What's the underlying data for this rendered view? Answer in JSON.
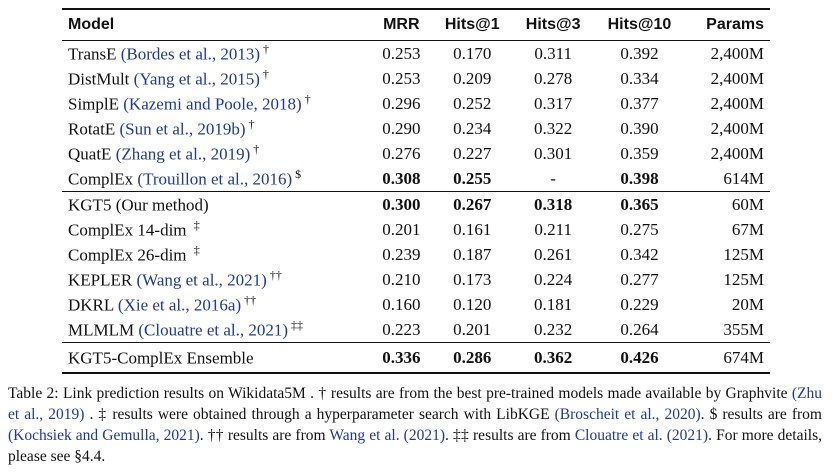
{
  "table": {
    "headers": {
      "model": "Model",
      "mrr": "MRR",
      "hits1": "Hits@1",
      "hits3": "Hits@3",
      "hits10": "Hits@10",
      "params": "Params"
    },
    "rows": [
      {
        "name": "TransE",
        "cite": "(Bordes et al., 2013)",
        "mark": "†",
        "mrr": "0.253",
        "hits1": "0.170",
        "hits3": "0.311",
        "hits10": "0.392",
        "params": "2,400M"
      },
      {
        "name": "DistMult",
        "cite": "(Yang et al., 2015)",
        "mark": "†",
        "mrr": "0.253",
        "hits1": "0.209",
        "hits3": "0.278",
        "hits10": "0.334",
        "params": "2,400M"
      },
      {
        "name": "SimplE",
        "cite": "(Kazemi and Poole, 2018)",
        "mark": "†",
        "mrr": "0.296",
        "hits1": "0.252",
        "hits3": "0.317",
        "hits10": "0.377",
        "params": "2,400M"
      },
      {
        "name": "RotatE",
        "cite": "(Sun et al., 2019b)",
        "mark": "†",
        "mrr": "0.290",
        "hits1": "0.234",
        "hits3": "0.322",
        "hits10": "0.390",
        "params": "2,400M"
      },
      {
        "name": "QuatE",
        "cite": "(Zhang et al., 2019)",
        "mark": "†",
        "mrr": "0.276",
        "hits1": "0.227",
        "hits3": "0.301",
        "hits10": "0.359",
        "params": "2,400M"
      },
      {
        "name": "ComplEx",
        "cite": "(Trouillon et al., 2016)",
        "mark": "$",
        "mrr": "0.308",
        "hits1": "0.255",
        "hits3": "-",
        "hits10": "0.398",
        "params": "614M"
      },
      {
        "name": "KGT5 (Our method)",
        "cite": "",
        "mark": "",
        "mrr": "0.300",
        "hits1": "0.267",
        "hits3": "0.318",
        "hits10": "0.365",
        "params": "60M"
      },
      {
        "name": "ComplEx 14-dim",
        "cite": "",
        "mark": "‡",
        "mrr": "0.201",
        "hits1": "0.161",
        "hits3": "0.211",
        "hits10": "0.275",
        "params": "67M"
      },
      {
        "name": "ComplEx 26-dim",
        "cite": "",
        "mark": "‡",
        "mrr": "0.239",
        "hits1": "0.187",
        "hits3": "0.261",
        "hits10": "0.342",
        "params": "125M"
      },
      {
        "name": "KEPLER",
        "cite": "(Wang et al., 2021)",
        "mark": "††",
        "mrr": "0.210",
        "hits1": "0.173",
        "hits3": "0.224",
        "hits10": "0.277",
        "params": "125M"
      },
      {
        "name": "DKRL",
        "cite": "(Xie et al., 2016a)",
        "mark": "††",
        "mrr": "0.160",
        "hits1": "0.120",
        "hits3": "0.181",
        "hits10": "0.229",
        "params": "20M"
      },
      {
        "name": "MLMLM",
        "cite": "(Clouatre et al., 2021)",
        "mark": "‡‡",
        "mrr": "0.223",
        "hits1": "0.201",
        "hits3": "0.232",
        "hits10": "0.264",
        "params": "355M"
      },
      {
        "name": "KGT5-ComplEx Ensemble",
        "cite": "",
        "mark": "",
        "mrr": "0.336",
        "hits1": "0.286",
        "hits3": "0.362",
        "hits10": "0.426",
        "params": "674M"
      }
    ]
  },
  "caption": {
    "p1": "Table 2: Link prediction results on Wikidata5M . † results are from the best pre-trained models made available by Graphvite ",
    "c1": "(Zhu et al., 2019)",
    "p2": " . ‡ results were obtained through a hyperparameter search with LibKGE ",
    "c2": "(Broscheit et al., 2020)",
    "p3": ". $ results are from ",
    "c3": "(Kochsiek and Gemulla, 2021)",
    "p4": ". †† results are from ",
    "c4": "Wang et al. (2021)",
    "p5": ". ‡‡ results are from ",
    "c5": "Clouatre et al. (2021)",
    "p6": ". For more details, please see §4.4."
  }
}
